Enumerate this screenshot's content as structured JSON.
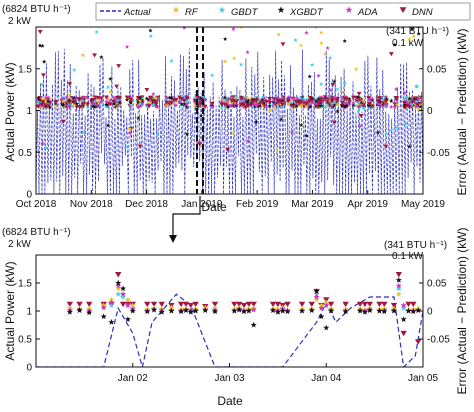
{
  "colors": {
    "actual": "#2b2fbf",
    "rf": "#f0c020",
    "gbdt": "#3fd0ee",
    "xgbdt": "#111111",
    "ada": "#cc33cc",
    "dnn": "#a3173f",
    "zoom_marker": "#111111"
  },
  "legend": {
    "placement": "top",
    "entries": [
      {
        "label": "Actual",
        "style": "dashed-line",
        "color_key": "actual"
      },
      {
        "label": "RF",
        "style": "star",
        "color_key": "rf"
      },
      {
        "label": "GBDT",
        "style": "star",
        "color_key": "gbdt"
      },
      {
        "label": "XGBDT",
        "style": "star",
        "color_key": "xgbdt"
      },
      {
        "label": "ADA",
        "style": "star",
        "color_key": "ada"
      },
      {
        "label": "DNN",
        "style": "triangle-down",
        "color_key": "dnn"
      }
    ]
  },
  "chart_data": [
    {
      "type": "line",
      "panel": "top",
      "xlabel": "Date",
      "ylabel": "Actual Power (kW)",
      "ylabel_right": "Error (Actual − Prediction) (kW)",
      "corner_left_label": "(6824 BTU h⁻¹)",
      "corner_left_unit": "2 kW",
      "corner_right_label": "(341 BTU h⁻¹)",
      "corner_right_unit": "0.1 kW",
      "x_ticks": [
        "Oct 2018",
        "Nov 2018",
        "Dec 2018",
        "Jan 2019",
        "Feb 2019",
        "Mar 2019",
        "Apr 2019",
        "May 2019"
      ],
      "y_ticks": [
        "0",
        "0.5",
        "1",
        "1.5"
      ],
      "y_ticks_right": [
        "-0.05",
        "0",
        "0.05"
      ],
      "ylim": [
        0,
        2
      ],
      "ylim_right": [
        -0.1,
        0.1
      ],
      "grid": false,
      "zoom_window": "Jan 02 2019 – Jan 05 2019",
      "series": [
        {
          "name": "Actual",
          "description_values": {
            "min": 0,
            "max": 1.85,
            "typical_on_level": 1.25
          }
        },
        {
          "name": "RF",
          "error_range": [
            -0.06,
            0.08
          ]
        },
        {
          "name": "GBDT",
          "error_range": [
            -0.06,
            0.08
          ]
        },
        {
          "name": "XGBDT",
          "error_range": [
            -0.07,
            0.09
          ]
        },
        {
          "name": "ADA",
          "error_range": [
            -0.06,
            0.08
          ]
        },
        {
          "name": "DNN",
          "error_range": [
            -0.1,
            0.1
          ]
        }
      ]
    },
    {
      "type": "line",
      "panel": "bottom",
      "xlabel": "Date",
      "ylabel": "Actual Power (kW)",
      "ylabel_right": "Error (Actual − Prediction) (kW)",
      "corner_left_label": "(6824 BTU h⁻¹)",
      "corner_left_unit": "2 kW",
      "corner_right_label": "(341 BTU h⁻¹)",
      "corner_right_unit": "0.1 kW",
      "x_ticks": [
        "Jan 02",
        "Jan 03",
        "Jan 04",
        "Jan 05"
      ],
      "x_tick_values": [
        1,
        2,
        3,
        4
      ],
      "y_ticks": [
        "0",
        "0.5",
        "1",
        "1.5"
      ],
      "y_ticks_right": [
        "-0.05",
        "0",
        "0.05"
      ],
      "xlim": [
        0,
        4
      ],
      "ylim": [
        0,
        2
      ],
      "ylim_right": [
        -0.1,
        0.1
      ],
      "grid": false,
      "actual": {
        "x": [
          0.0,
          0.4,
          0.7,
          0.85,
          1.0,
          1.1,
          1.2,
          1.45,
          1.6,
          1.85,
          2.0,
          2.2,
          2.55,
          2.9,
          3.0,
          3.1,
          3.25,
          3.45,
          3.7,
          3.8,
          3.92,
          4.0
        ],
        "y": [
          0.0,
          0.0,
          0.0,
          1.05,
          0.6,
          0.0,
          0.8,
          1.3,
          1.1,
          0.0,
          0.0,
          0.0,
          0.0,
          0.8,
          1.15,
          0.8,
          1.05,
          1.25,
          1.25,
          0.0,
          0.2,
          1.0
        ]
      },
      "errors": {
        "x": [
          0.35,
          0.45,
          0.55,
          0.7,
          0.78,
          0.85,
          0.9,
          0.95,
          1.0,
          1.15,
          1.22,
          1.3,
          1.4,
          1.5,
          1.55,
          1.6,
          1.65,
          1.75,
          1.85,
          2.05,
          2.1,
          2.15,
          2.2,
          2.25,
          2.45,
          2.5,
          2.55,
          2.6,
          2.75,
          2.85,
          2.9,
          2.95,
          3.0,
          3.05,
          3.2,
          3.35,
          3.4,
          3.45,
          3.55,
          3.6,
          3.7,
          3.75,
          3.8,
          3.85,
          3.9,
          3.95
        ],
        "rf": [
          0.005,
          0.003,
          0.004,
          0.01,
          0.02,
          0.04,
          0.03,
          0.02,
          0.01,
          0.003,
          0.005,
          0.004,
          0.006,
          0.003,
          0.004,
          0.002,
          0.004,
          0.006,
          0.005,
          0.003,
          0.006,
          0.002,
          0.004,
          0.005,
          0.004,
          0.003,
          0.006,
          0.002,
          0.003,
          0.004,
          0.02,
          0.01,
          0.015,
          0.004,
          0.003,
          0.004,
          0.002,
          0.005,
          0.003,
          0.004,
          0.004,
          0.03,
          0.01,
          0.002,
          0.003,
          0.004
        ],
        "gbdt": [
          0.002,
          0.004,
          0.001,
          0.008,
          0.01,
          0.03,
          0.025,
          0.01,
          0.005,
          0.001,
          0.003,
          0.002,
          0.002,
          0.001,
          0.003,
          0.0,
          0.002,
          0.003,
          0.002,
          0.001,
          0.004,
          0.001,
          0.002,
          0.003,
          0.002,
          0.001,
          0.004,
          0.001,
          0.001,
          0.002,
          0.03,
          0.005,
          0.01,
          0.002,
          0.001,
          0.002,
          0.001,
          0.003,
          0.001,
          0.002,
          0.002,
          0.04,
          0.005,
          0.001,
          0.001,
          0.002
        ],
        "xgbdt": [
          -0.002,
          0.001,
          -0.003,
          -0.01,
          -0.02,
          0.05,
          0.04,
          -0.015,
          0.0,
          -0.001,
          0.002,
          -0.002,
          0.0,
          -0.001,
          0.001,
          -0.002,
          0.0,
          0.001,
          -0.001,
          0.0,
          0.002,
          -0.001,
          0.0,
          -0.025,
          0.001,
          -0.002,
          0.0,
          -0.001,
          0.0,
          0.001,
          0.035,
          -0.01,
          -0.03,
          0.0,
          -0.001,
          0.0,
          -0.002,
          0.001,
          0.0,
          -0.001,
          0.0,
          0.055,
          -0.015,
          0.0,
          -0.001,
          0.001
        ],
        "ada": [
          0.001,
          0.002,
          0.0,
          0.006,
          0.015,
          0.045,
          0.03,
          0.01,
          0.003,
          0.0,
          0.002,
          0.001,
          0.001,
          0.0,
          0.002,
          0.001,
          0.001,
          0.002,
          0.001,
          0.0,
          0.003,
          0.0,
          0.001,
          0.002,
          0.001,
          0.0,
          0.003,
          0.0,
          0.0,
          0.001,
          0.025,
          0.005,
          0.01,
          0.001,
          0.0,
          0.001,
          0.0,
          0.002,
          0.0,
          0.001,
          0.001,
          0.045,
          0.01,
          0.0,
          0.0,
          0.001
        ],
        "dnn": [
          0.012,
          0.012,
          0.012,
          0.012,
          0.012,
          0.065,
          0.012,
          0.012,
          0.012,
          0.012,
          0.012,
          0.012,
          0.01,
          0.012,
          0.012,
          0.01,
          0.012,
          0.008,
          0.012,
          0.012,
          0.012,
          0.01,
          0.012,
          0.012,
          0.012,
          0.012,
          0.01,
          0.012,
          0.012,
          0.012,
          0.035,
          0.01,
          0.02,
          0.012,
          0.012,
          0.012,
          0.012,
          0.012,
          0.012,
          0.012,
          0.01,
          0.065,
          -0.04,
          0.012,
          0.012,
          -0.055
        ]
      }
    }
  ]
}
